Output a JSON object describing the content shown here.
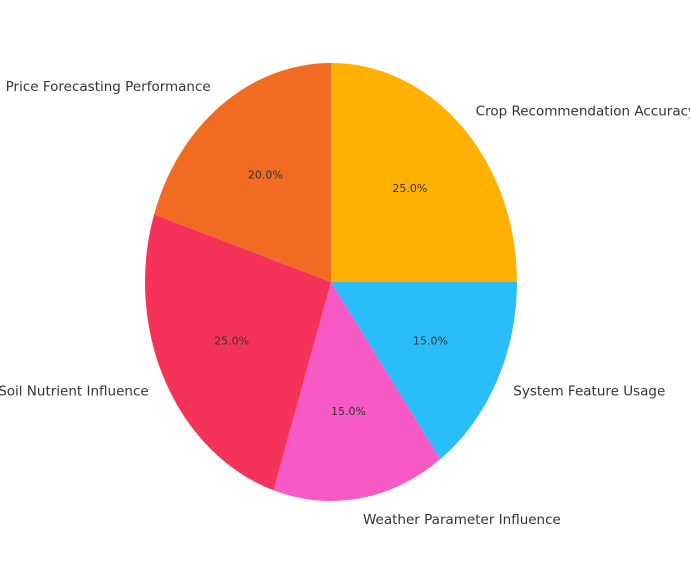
{
  "chart_data": {
    "type": "pie",
    "categories": [
      "Crop Recommendation Accuracy",
      "System Feature Usage",
      "Weather Parameter Influence",
      "Soil Nutrient Influence",
      "Price Forecasting Performance"
    ],
    "values": [
      25,
      15,
      15,
      25,
      20
    ],
    "value_labels": [
      "25.0%",
      "15.0%",
      "15.0%",
      "25.0%",
      "20.0%"
    ],
    "colors": [
      "#ffb000",
      "#29bdfa",
      "#f75ac4",
      "#f5335a",
      "#f26b22"
    ]
  }
}
